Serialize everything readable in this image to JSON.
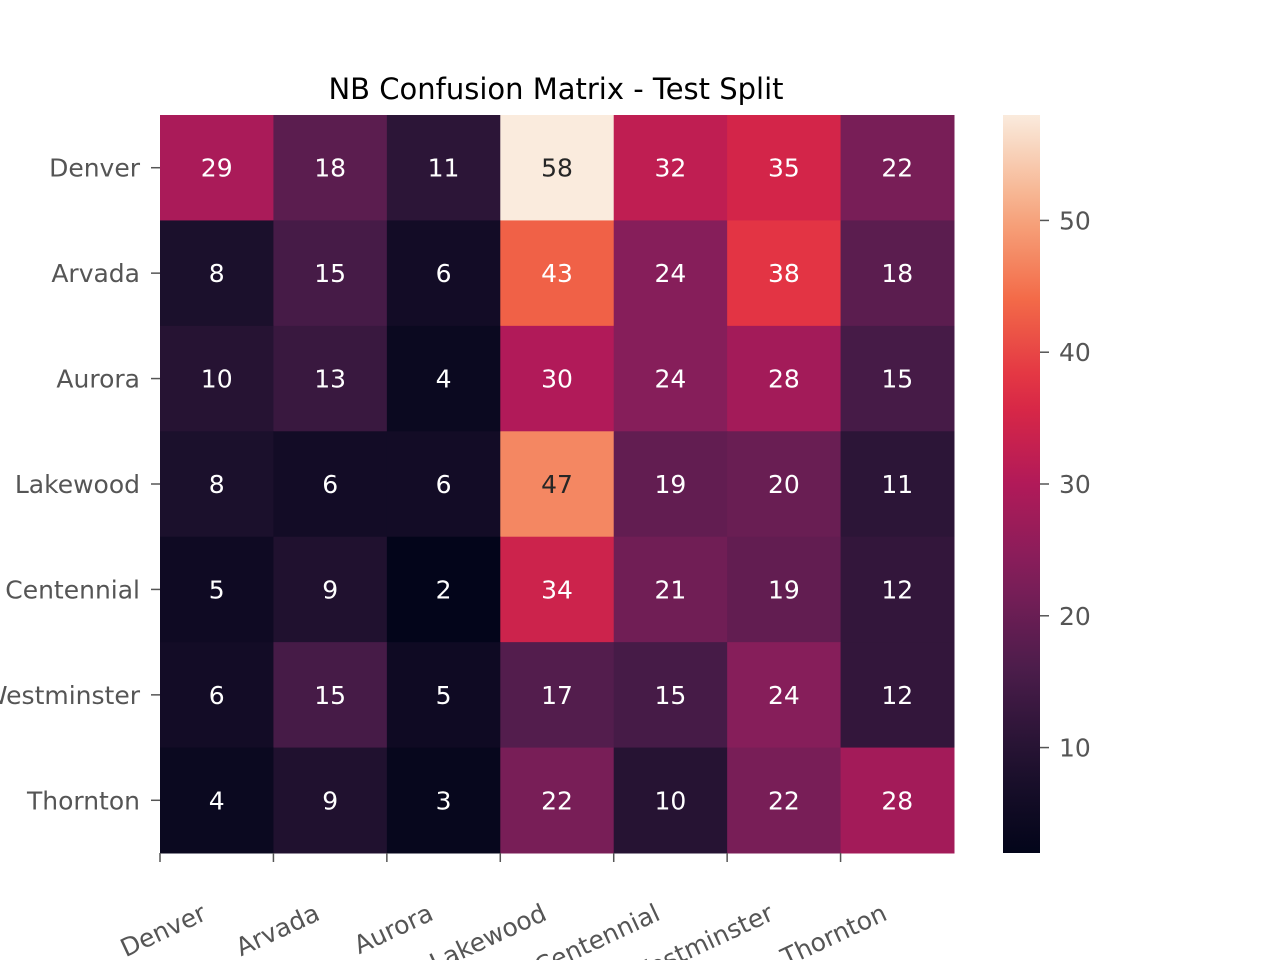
{
  "chart_data": {
    "type": "heatmap",
    "title": "NB Confusion Matrix - Test Split",
    "xlabel": "",
    "ylabel": "",
    "row_labels": [
      "Denver",
      "Arvada",
      "Aurora",
      "Lakewood",
      "Centennial",
      "Westminster",
      "Thornton"
    ],
    "col_labels": [
      "Denver",
      "Arvada",
      "Aurora",
      "Lakewood",
      "Centennial",
      "Westminster",
      "Thornton"
    ],
    "values": [
      [
        29,
        18,
        11,
        58,
        32,
        35,
        22
      ],
      [
        8,
        15,
        6,
        43,
        24,
        38,
        18
      ],
      [
        10,
        13,
        4,
        30,
        24,
        28,
        15
      ],
      [
        8,
        6,
        6,
        47,
        19,
        20,
        11
      ],
      [
        5,
        9,
        2,
        34,
        21,
        19,
        12
      ],
      [
        6,
        15,
        5,
        17,
        15,
        24,
        12
      ],
      [
        4,
        9,
        3,
        22,
        10,
        22,
        28
      ]
    ],
    "annotated": true,
    "colormap": "rocket",
    "colorbar": {
      "range": [
        2,
        58
      ],
      "ticks": [
        10,
        20,
        30,
        40,
        50
      ],
      "position": "right"
    },
    "x_tick_rotation_deg": 25
  }
}
